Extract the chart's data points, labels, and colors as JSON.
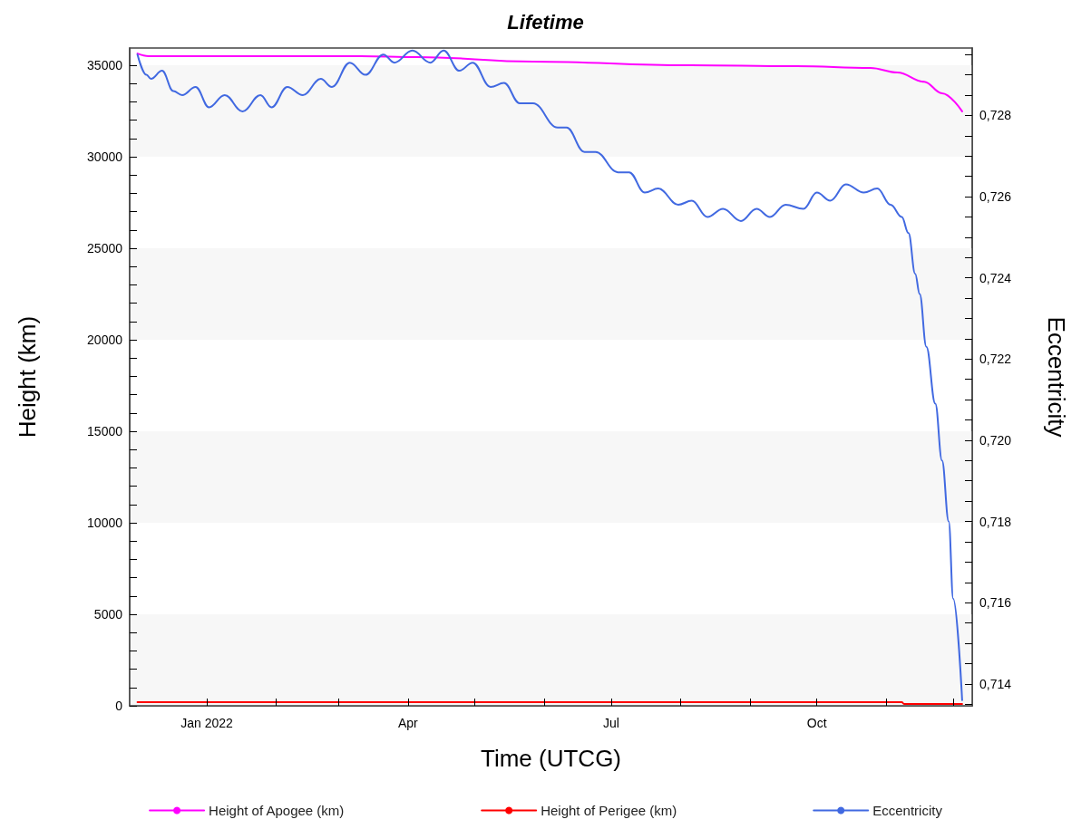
{
  "chart_data": {
    "type": "line",
    "title": "Lifetime",
    "xlabel": "Time (UTCG)",
    "ylabel": "Height (km)",
    "y2label": "Eccentricity",
    "xlim": [
      "2021-11-27T12:00",
      "2022-12-09T12:00"
    ],
    "xticks": [
      {
        "value": "2022-01-01",
        "label": "Jan 2022"
      },
      {
        "value": "2022-02-01",
        "label": null
      },
      {
        "value": "2022-03-01",
        "label": null
      },
      {
        "value": "2022-04-01",
        "label": "Apr"
      },
      {
        "value": "2022-05-01",
        "label": null
      },
      {
        "value": "2022-06-01",
        "label": null
      },
      {
        "value": "2022-07-01",
        "label": "Jul"
      },
      {
        "value": "2022-08-01",
        "label": null
      },
      {
        "value": "2022-09-01",
        "label": null
      },
      {
        "value": "2022-10-01",
        "label": "Oct"
      },
      {
        "value": "2022-11-01",
        "label": null
      },
      {
        "value": "2022-12-01",
        "label": null
      }
    ],
    "ylim": [
      0,
      35940
    ],
    "yticks": [
      0,
      {
        "value": 1000,
        "label": null
      },
      {
        "value": 2000,
        "label": null
      },
      {
        "value": 3000,
        "label": null
      },
      {
        "value": 4000,
        "label": null
      },
      5000,
      {
        "value": 6000,
        "label": null
      },
      {
        "value": 7000,
        "label": null
      },
      {
        "value": 8000,
        "label": null
      },
      {
        "value": 9000,
        "label": null
      },
      10000,
      {
        "value": 11000,
        "label": null
      },
      {
        "value": 12000,
        "label": null
      },
      {
        "value": 13000,
        "label": null
      },
      {
        "value": 14000,
        "label": null
      },
      15000,
      {
        "value": 16000,
        "label": null
      },
      {
        "value": 17000,
        "label": null
      },
      {
        "value": 18000,
        "label": null
      },
      {
        "value": 19000,
        "label": null
      },
      20000,
      {
        "value": 21000,
        "label": null
      },
      {
        "value": 22000,
        "label": null
      },
      {
        "value": 23000,
        "label": null
      },
      {
        "value": 24000,
        "label": null
      },
      25000,
      {
        "value": 26000,
        "label": null
      },
      {
        "value": 27000,
        "label": null
      },
      {
        "value": 28000,
        "label": null
      },
      {
        "value": 29000,
        "label": null
      },
      30000,
      {
        "value": 31000,
        "label": null
      },
      {
        "value": 32000,
        "label": null
      },
      {
        "value": 33000,
        "label": null
      },
      {
        "value": 34000,
        "label": null
      },
      35000
    ],
    "y2lim": [
      0.71346,
      0.72966
    ],
    "y2ticks": [
      {
        "value": 0.7135,
        "label": null
      },
      {
        "value": 0.714,
        "label": "0,714"
      },
      {
        "value": 0.7145,
        "label": null
      },
      {
        "value": 0.715,
        "label": null
      },
      {
        "value": 0.7155,
        "label": null
      },
      {
        "value": 0.716,
        "label": "0,716"
      },
      {
        "value": 0.7165,
        "label": null
      },
      {
        "value": 0.717,
        "label": null
      },
      {
        "value": 0.7175,
        "label": null
      },
      {
        "value": 0.718,
        "label": "0,718"
      },
      {
        "value": 0.7185,
        "label": null
      },
      {
        "value": 0.719,
        "label": null
      },
      {
        "value": 0.7195,
        "label": null
      },
      {
        "value": 0.72,
        "label": "0,720"
      },
      {
        "value": 0.7205,
        "label": null
      },
      {
        "value": 0.721,
        "label": null
      },
      {
        "value": 0.7215,
        "label": null
      },
      {
        "value": 0.722,
        "label": "0,722"
      },
      {
        "value": 0.7225,
        "label": null
      },
      {
        "value": 0.723,
        "label": null
      },
      {
        "value": 0.7235,
        "label": null
      },
      {
        "value": 0.724,
        "label": "0,724"
      },
      {
        "value": 0.7245,
        "label": null
      },
      {
        "value": 0.725,
        "label": null
      },
      {
        "value": 0.7255,
        "label": null
      },
      {
        "value": 0.726,
        "label": "0,726"
      },
      {
        "value": 0.7265,
        "label": null
      },
      {
        "value": 0.727,
        "label": null
      },
      {
        "value": 0.7275,
        "label": null
      },
      {
        "value": 0.728,
        "label": "0,728"
      },
      {
        "value": 0.7285,
        "label": null
      },
      {
        "value": 0.729,
        "label": null
      },
      {
        "value": 0.7295,
        "label": null
      }
    ],
    "bands": [
      {
        "axis": "y",
        "from": 0,
        "to": 5000,
        "color": "#f7f7f7"
      },
      {
        "axis": "y",
        "from": 10000,
        "to": 15000,
        "color": "#f7f7f7"
      },
      {
        "axis": "y",
        "from": 20000,
        "to": 25000,
        "color": "#f7f7f7"
      },
      {
        "axis": "y",
        "from": 30000,
        "to": 35000,
        "color": "#f7f7f7"
      }
    ],
    "legend": "bottom",
    "marker": "none",
    "line_style": "solid",
    "series": [
      {
        "name": "Height of Apogee (km)",
        "color": "#ff00ff",
        "x": [
          "2021-12-01",
          "2021-12-06",
          "2022-03-11",
          "2022-04-05",
          "2022-05-27",
          "2022-08-04",
          "2022-09-22",
          "2022-10-25",
          "2022-11-06",
          "2022-11-18",
          "2022-11-26",
          "2022-12-05"
        ],
        "values": [
          35640,
          35500,
          35500,
          35450,
          35200,
          35000,
          34950,
          34850,
          34600,
          34100,
          33470,
          32480
        ]
      },
      {
        "name": "Height of Perigee (km)",
        "color": "#ff0000",
        "x": [
          "2021-12-01",
          "2022-11-08",
          "2022-11-09",
          "2022-12-05"
        ],
        "values": [
          200,
          200,
          100,
          100
        ]
      },
      {
        "name": "Eccentricity",
        "color": "#4169e1",
        "axis": "y2",
        "x": [
          "2021-12-01",
          "2021-12-05",
          "2021-12-07",
          "2021-12-12",
          "2021-12-17",
          "2021-12-21",
          "2021-12-27",
          "2022-01-02",
          "2022-01-09",
          "2022-01-17",
          "2022-01-25",
          "2022-01-30",
          "2022-02-06",
          "2022-02-13",
          "2022-02-21",
          "2022-02-26",
          "2022-03-06",
          "2022-03-13",
          "2022-03-21",
          "2022-03-26",
          "2022-04-03",
          "2022-04-11",
          "2022-04-17",
          "2022-04-24",
          "2022-04-30",
          "2022-05-08",
          "2022-05-14",
          "2022-05-21",
          "2022-05-27",
          "2022-06-07",
          "2022-06-11",
          "2022-06-19",
          "2022-06-24",
          "2022-07-04",
          "2022-07-09",
          "2022-07-16",
          "2022-07-22",
          "2022-07-31",
          "2022-08-06",
          "2022-08-13",
          "2022-08-20",
          "2022-08-28",
          "2022-09-04",
          "2022-09-10",
          "2022-09-17",
          "2022-09-25",
          "2022-10-01",
          "2022-10-07",
          "2022-10-14",
          "2022-10-22",
          "2022-10-28",
          "2022-11-03",
          "2022-11-08",
          "2022-11-11",
          "2022-11-14",
          "2022-11-16",
          "2022-11-19",
          "2022-11-23",
          "2022-11-26",
          "2022-11-29",
          "2022-12-01",
          "2022-12-05"
        ],
        "values": [
          0.7295,
          0.729,
          0.7289,
          0.7291,
          0.7286,
          0.7285,
          0.7287,
          0.7282,
          0.7285,
          0.7281,
          0.7285,
          0.7282,
          0.7287,
          0.7285,
          0.7289,
          0.7287,
          0.7293,
          0.729,
          0.7295,
          0.7293,
          0.7296,
          0.7293,
          0.7296,
          0.7291,
          0.7293,
          0.7287,
          0.7288,
          0.7283,
          0.7283,
          0.7277,
          0.7277,
          0.7271,
          0.7271,
          0.7266,
          0.7266,
          0.7261,
          0.7262,
          0.7258,
          0.7259,
          0.7255,
          0.7257,
          0.7254,
          0.7257,
          0.7255,
          0.7258,
          0.7257,
          0.7261,
          0.7259,
          0.7263,
          0.7261,
          0.7262,
          0.7258,
          0.7255,
          0.7251,
          0.7241,
          0.7236,
          0.7223,
          0.7209,
          0.7195,
          0.718,
          0.7161,
          0.7136
        ]
      }
    ]
  }
}
